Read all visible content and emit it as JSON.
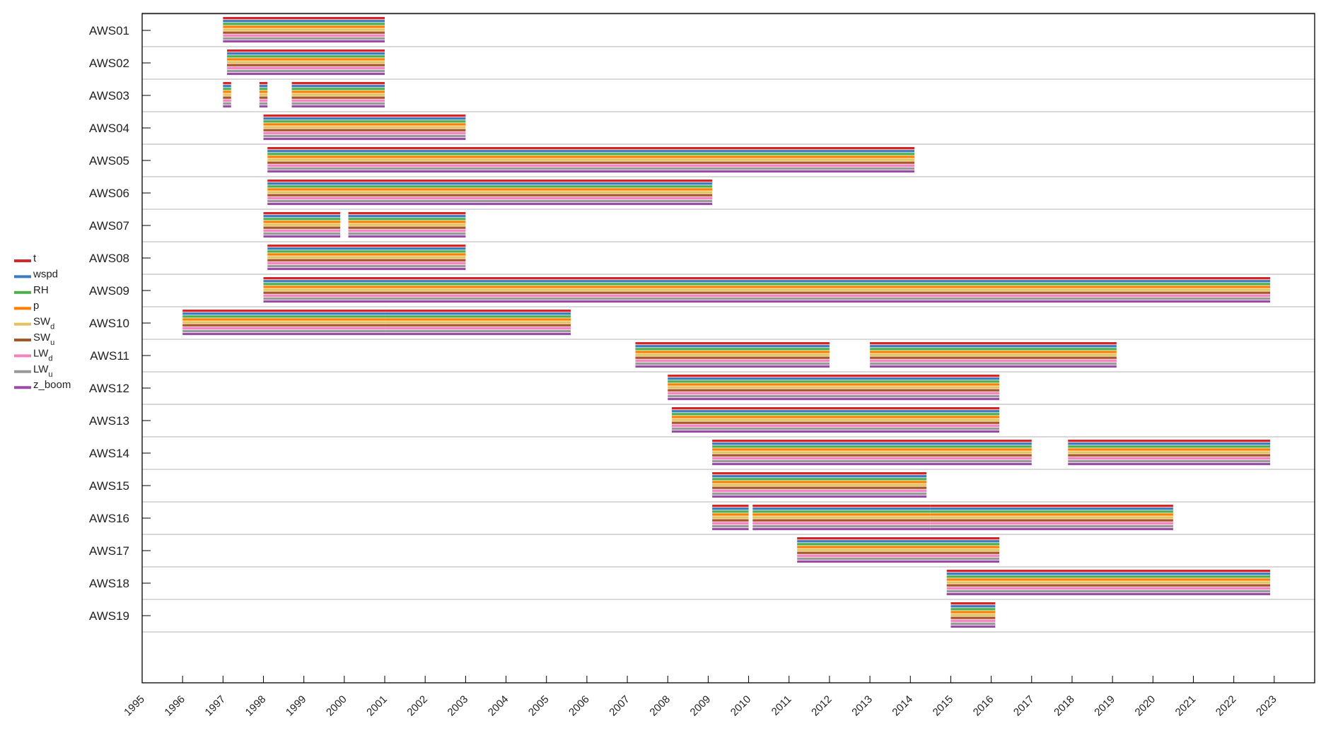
{
  "chart_data": {
    "type": "gantt",
    "title": "",
    "xlabel": "",
    "ylabel": "",
    "xlim": [
      1995,
      2024
    ],
    "x_ticks": [
      "1995",
      "1996",
      "1997",
      "1998",
      "1999",
      "2000",
      "2001",
      "2002",
      "2003",
      "2004",
      "2005",
      "2006",
      "2007",
      "2008",
      "2009",
      "2010",
      "2011",
      "2012",
      "2013",
      "2014",
      "2015",
      "2016",
      "2017",
      "2018",
      "2019",
      "2020",
      "2021",
      "2022",
      "2023"
    ],
    "legend": {
      "placement": "left",
      "items": [
        {
          "key": "t",
          "label": "t",
          "sub": "",
          "color": "#d62728"
        },
        {
          "key": "wspd",
          "label": "wspd",
          "sub": "",
          "color": "#3b7bbf"
        },
        {
          "key": "RH",
          "label": "RH",
          "sub": "",
          "color": "#4daf4a"
        },
        {
          "key": "p",
          "label": "p",
          "sub": "",
          "color": "#ff7f00"
        },
        {
          "key": "SWd",
          "label": "SW",
          "sub": "d",
          "color": "#e3c35c"
        },
        {
          "key": "SWu",
          "label": "SW",
          "sub": "u",
          "color": "#a65628"
        },
        {
          "key": "LWd",
          "label": "LW",
          "sub": "d",
          "color": "#f781bf"
        },
        {
          "key": "LWu",
          "label": "LW",
          "sub": "u",
          "color": "#999999"
        },
        {
          "key": "z_boom",
          "label": "z_boom",
          "sub": "",
          "color": "#984ea3"
        }
      ]
    },
    "stations": [
      {
        "name": "AWS01",
        "periods": [
          [
            1997.0,
            2001.0
          ]
        ]
      },
      {
        "name": "AWS02",
        "periods": [
          [
            1997.1,
            2001.0
          ]
        ]
      },
      {
        "name": "AWS03",
        "periods": [
          [
            1997.0,
            1997.2
          ],
          [
            1997.9,
            1998.1
          ],
          [
            1998.7,
            2001.0
          ]
        ]
      },
      {
        "name": "AWS04",
        "periods": [
          [
            1998.0,
            2003.0
          ]
        ]
      },
      {
        "name": "AWS05",
        "periods": [
          [
            1998.1,
            2014.1
          ]
        ]
      },
      {
        "name": "AWS06",
        "periods": [
          [
            1998.1,
            2009.1
          ]
        ]
      },
      {
        "name": "AWS07",
        "periods": [
          [
            1998.0,
            1999.9
          ],
          [
            2000.1,
            2003.0
          ]
        ]
      },
      {
        "name": "AWS08",
        "periods": [
          [
            1998.1,
            2003.0
          ]
        ]
      },
      {
        "name": "AWS09",
        "periods": [
          [
            1998.0,
            2022.9
          ]
        ]
      },
      {
        "name": "AWS10",
        "periods": [
          [
            1996.0,
            2001.0
          ],
          [
            2001.0,
            2005.6
          ]
        ]
      },
      {
        "name": "AWS11",
        "periods": [
          [
            2007.2,
            2012.0
          ],
          [
            2013.0,
            2019.1
          ]
        ]
      },
      {
        "name": "AWS12",
        "periods": [
          [
            2008.0,
            2016.2
          ]
        ]
      },
      {
        "name": "AWS13",
        "periods": [
          [
            2008.1,
            2016.2
          ]
        ]
      },
      {
        "name": "AWS14",
        "periods": [
          [
            2009.1,
            2017.0
          ],
          [
            2017.9,
            2022.9
          ]
        ]
      },
      {
        "name": "AWS15",
        "periods": [
          [
            2009.1,
            2014.4
          ]
        ]
      },
      {
        "name": "AWS16",
        "periods": [
          [
            2009.1,
            2010.0
          ],
          [
            2010.1,
            2014.5
          ],
          [
            2014.5,
            2020.5
          ]
        ]
      },
      {
        "name": "AWS17",
        "periods": [
          [
            2011.2,
            2016.2
          ]
        ]
      },
      {
        "name": "AWS18",
        "periods": [
          [
            2014.9,
            2022.9
          ]
        ]
      },
      {
        "name": "AWS19",
        "periods": [
          [
            2015.0,
            2016.1
          ]
        ]
      }
    ]
  }
}
